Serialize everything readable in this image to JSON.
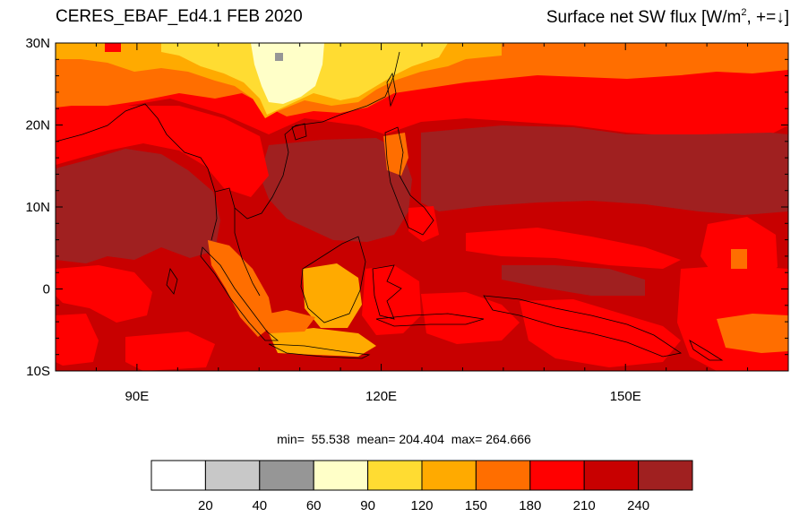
{
  "title": {
    "left": "CERES_EBAF_Ed4.1 FEB 2020",
    "right_main": "Surface net SW flux [W/m",
    "right_sup": "2",
    "right_tail": ", +=↓]"
  },
  "stats_text": "min=  55.538  mean= 204.404  max= 264.666",
  "map": {
    "type": "heatmap",
    "lon_range": [
      80,
      170
    ],
    "lat_range": [
      -10,
      30
    ],
    "lon_ticks": [
      {
        "value": 90,
        "label": "90E"
      },
      {
        "value": 120,
        "label": "120E"
      },
      {
        "value": 150,
        "label": "150E"
      }
    ],
    "lat_ticks": [
      {
        "value": 30,
        "label": "30N"
      },
      {
        "value": 20,
        "label": "20N"
      },
      {
        "value": 10,
        "label": "10N"
      },
      {
        "value": 0,
        "label": "0"
      },
      {
        "value": -10,
        "label": "10S"
      }
    ],
    "min": 55.538,
    "mean": 204.404,
    "max": 264.666
  },
  "colorbar": {
    "colors": [
      "#ffffff",
      "#c8c8c8",
      "#969696",
      "#ffffc8",
      "#ffdc32",
      "#ffaa00",
      "#ff6e00",
      "#ff0000",
      "#c80000",
      "#a02020"
    ],
    "labels": [
      "20",
      "40",
      "60",
      "90",
      "120",
      "150",
      "180",
      "210",
      "240"
    ]
  }
}
